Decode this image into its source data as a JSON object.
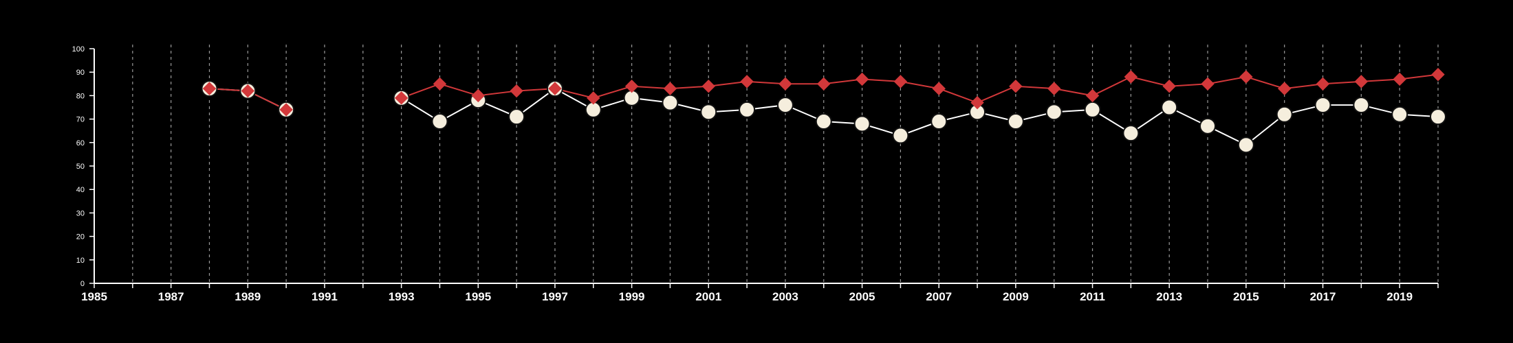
{
  "chart_data": {
    "type": "line",
    "title": "",
    "xlabel": "",
    "ylabel": "",
    "xlim": [
      1985,
      2020
    ],
    "ylim": [
      0,
      100
    ],
    "x_ticks": [
      "1985",
      "1987",
      "1989",
      "1991",
      "1993",
      "1995",
      "1997",
      "1999",
      "2001",
      "2003",
      "2005",
      "2007",
      "2009",
      "2011",
      "2013",
      "2015",
      "2017",
      "2019"
    ],
    "y_ticks": [
      "0",
      "10",
      "20",
      "30",
      "40",
      "50",
      "60",
      "70",
      "80",
      "90",
      "100"
    ],
    "vertical_gridlines": "dashed, every year",
    "series": [
      {
        "marker": "circle",
        "color": "#f5eedd",
        "line_color": "#ffffff",
        "x": [
          1988,
          1989,
          1990,
          1993,
          1994,
          1995,
          1996,
          1997,
          1998,
          1999,
          2000,
          2001,
          2002,
          2003,
          2004,
          2005,
          2006,
          2007,
          2008,
          2009,
          2010,
          2011,
          2012,
          2013,
          2014,
          2015,
          2016,
          2017,
          2018,
          2019,
          2020
        ],
        "values": [
          83,
          82,
          74,
          79,
          69,
          78,
          71,
          83,
          74,
          79,
          77,
          73,
          74,
          76,
          69,
          68,
          63,
          69,
          73,
          69,
          73,
          74,
          64,
          75,
          67,
          59,
          72,
          76,
          76,
          72,
          71
        ]
      },
      {
        "marker": "diamond",
        "color": "#d2383a",
        "line_color": "#d2383a",
        "x": [
          1988,
          1989,
          1990,
          1993,
          1994,
          1995,
          1996,
          1997,
          1998,
          1999,
          2000,
          2001,
          2002,
          2003,
          2004,
          2005,
          2006,
          2007,
          2008,
          2009,
          2010,
          2011,
          2012,
          2013,
          2014,
          2015,
          2016,
          2017,
          2018,
          2019,
          2020
        ],
        "values": [
          83,
          82,
          74,
          79,
          85,
          80,
          82,
          83,
          79,
          84,
          83,
          84,
          86,
          85,
          85,
          87,
          86,
          83,
          77,
          84,
          83,
          80,
          88,
          84,
          85,
          88,
          83,
          85,
          86,
          87,
          89
        ]
      }
    ]
  }
}
